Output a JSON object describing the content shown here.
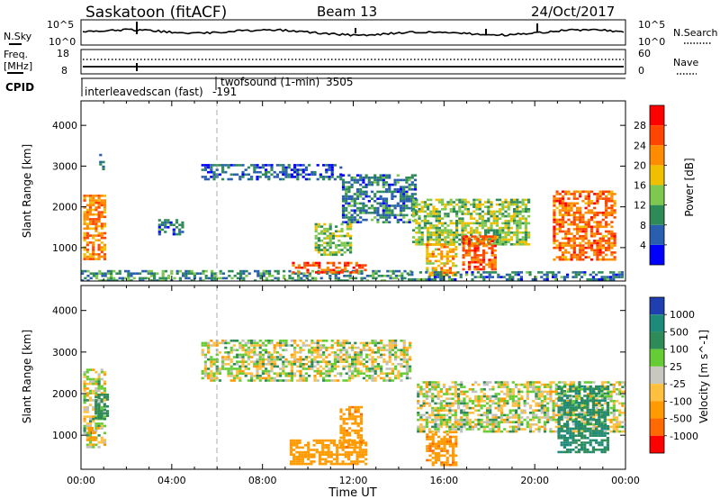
{
  "header": {
    "radar_label": "Saskatoon (fitACF)",
    "beam_label": "Beam 13",
    "date_label": "24/Oct/2017"
  },
  "noise_panel": {
    "left_label": "N.Sky",
    "right_label": "N.Search",
    "left_ticks": [
      "10^5",
      "10^0"
    ],
    "right_ticks": [
      "10^5",
      "10^0"
    ]
  },
  "freq_panel": {
    "left_label_line1": "Freq.",
    "left_label_line2": "[MHz]",
    "right_label": "Nave",
    "left_ticks": [
      "18",
      "8"
    ],
    "right_ticks": [
      "60",
      "0"
    ],
    "cpid_label": "CPID",
    "cpid_entries": [
      {
        "name": "interleavedscan (fast)",
        "id": "-191"
      },
      {
        "name": "twofsound (1-min)",
        "id": "3505"
      }
    ]
  },
  "colors": {
    "power_scale": [
      "#0000ff",
      "#2a5fb0",
      "#2e8b57",
      "#7ec850",
      "#f0c000",
      "#ff8c00",
      "#ff4500",
      "#ff0000"
    ],
    "velocity_scale": [
      "#ff0000",
      "#ff6a00",
      "#ff9a00",
      "#ffbf3f",
      "#c8c8c0",
      "#66cc33",
      "#2e8b57",
      "#1e8a7a",
      "#1f3fb0"
    ],
    "grey": "#c0c0bc"
  },
  "chart_data": [
    {
      "type": "heatmap",
      "title": "Power",
      "xlabel": "",
      "ylabel": "Slant Range [km]",
      "x_range_hours": [
        0,
        24
      ],
      "ylim": [
        180,
        4600
      ],
      "y_ticks": [
        "1000",
        "2000",
        "3000",
        "4000"
      ],
      "colorbar_label": "Power [dB]",
      "colorbar_ticks": [
        "4",
        "8",
        "12",
        "16",
        "20",
        "24",
        "28"
      ],
      "regions": [
        {
          "t": [
            0.1,
            1.1
          ],
          "r": [
            700,
            2300
          ],
          "power": 22
        },
        {
          "t": [
            0.8,
            1.0
          ],
          "r": [
            2900,
            3300
          ],
          "power": 6
        },
        {
          "t": [
            0.0,
            14.5
          ],
          "r": [
            200,
            450
          ],
          "power": 10
        },
        {
          "t": [
            3.4,
            4.5
          ],
          "r": [
            1300,
            1700
          ],
          "power": 8
        },
        {
          "t": [
            5.3,
            11.5
          ],
          "r": [
            2700,
            3050
          ],
          "power": 6
        },
        {
          "t": [
            11.5,
            14.7
          ],
          "r": [
            1600,
            2800
          ],
          "power": 8
        },
        {
          "t": [
            9.3,
            12.6
          ],
          "r": [
            400,
            650
          ],
          "power": 27
        },
        {
          "t": [
            10.3,
            11.9
          ],
          "r": [
            800,
            1600
          ],
          "power": 14
        },
        {
          "t": [
            14.6,
            19.8
          ],
          "r": [
            1100,
            2200
          ],
          "power": 14
        },
        {
          "t": [
            15.2,
            16.5
          ],
          "r": [
            350,
            1100
          ],
          "power": 20
        },
        {
          "t": [
            16.8,
            18.2
          ],
          "r": [
            450,
            1300
          ],
          "power": 25
        },
        {
          "t": [
            20.8,
            23.5
          ],
          "r": [
            700,
            2400
          ],
          "power": 24
        },
        {
          "t": [
            14.4,
            23.9
          ],
          "r": [
            200,
            420
          ],
          "power": 8
        }
      ]
    },
    {
      "type": "heatmap",
      "title": "Velocity",
      "xlabel": "Time UT",
      "ylabel": "Slant Range [km]",
      "x_range_hours": [
        0,
        24
      ],
      "x_ticks": [
        "00:00",
        "04:00",
        "08:00",
        "12:00",
        "16:00",
        "20:00",
        "00:00"
      ],
      "ylim": [
        180,
        4600
      ],
      "y_ticks": [
        "1000",
        "2000",
        "3000",
        "4000"
      ],
      "colorbar_label": "Velocity [m s^-1]",
      "colorbar_ticks": [
        "1000",
        "500",
        "100",
        "25",
        "-25",
        "-100",
        "-500",
        "-1000"
      ],
      "regions": [
        {
          "t": [
            0.1,
            1.1
          ],
          "r": [
            700,
            2600
          ],
          "velocity": 0
        },
        {
          "t": [
            0.6,
            1.2
          ],
          "r": [
            1400,
            2000
          ],
          "velocity": 300
        },
        {
          "t": [
            0.3,
            0.8
          ],
          "r": [
            900,
            1200
          ],
          "velocity": -300
        },
        {
          "t": [
            5.3,
            14.5
          ],
          "r": [
            2300,
            3300
          ],
          "velocity": 0
        },
        {
          "t": [
            9.2,
            12.6
          ],
          "r": [
            330,
            900
          ],
          "velocity": -250
        },
        {
          "t": [
            11.4,
            12.3
          ],
          "r": [
            700,
            1700
          ],
          "velocity": -400
        },
        {
          "t": [
            14.8,
            24.0
          ],
          "r": [
            1100,
            2300
          ],
          "velocity": 0
        },
        {
          "t": [
            15.2,
            16.5
          ],
          "r": [
            300,
            1100
          ],
          "velocity": -400
        },
        {
          "t": [
            21.0,
            23.2
          ],
          "r": [
            600,
            2200
          ],
          "velocity": 500
        }
      ]
    }
  ]
}
